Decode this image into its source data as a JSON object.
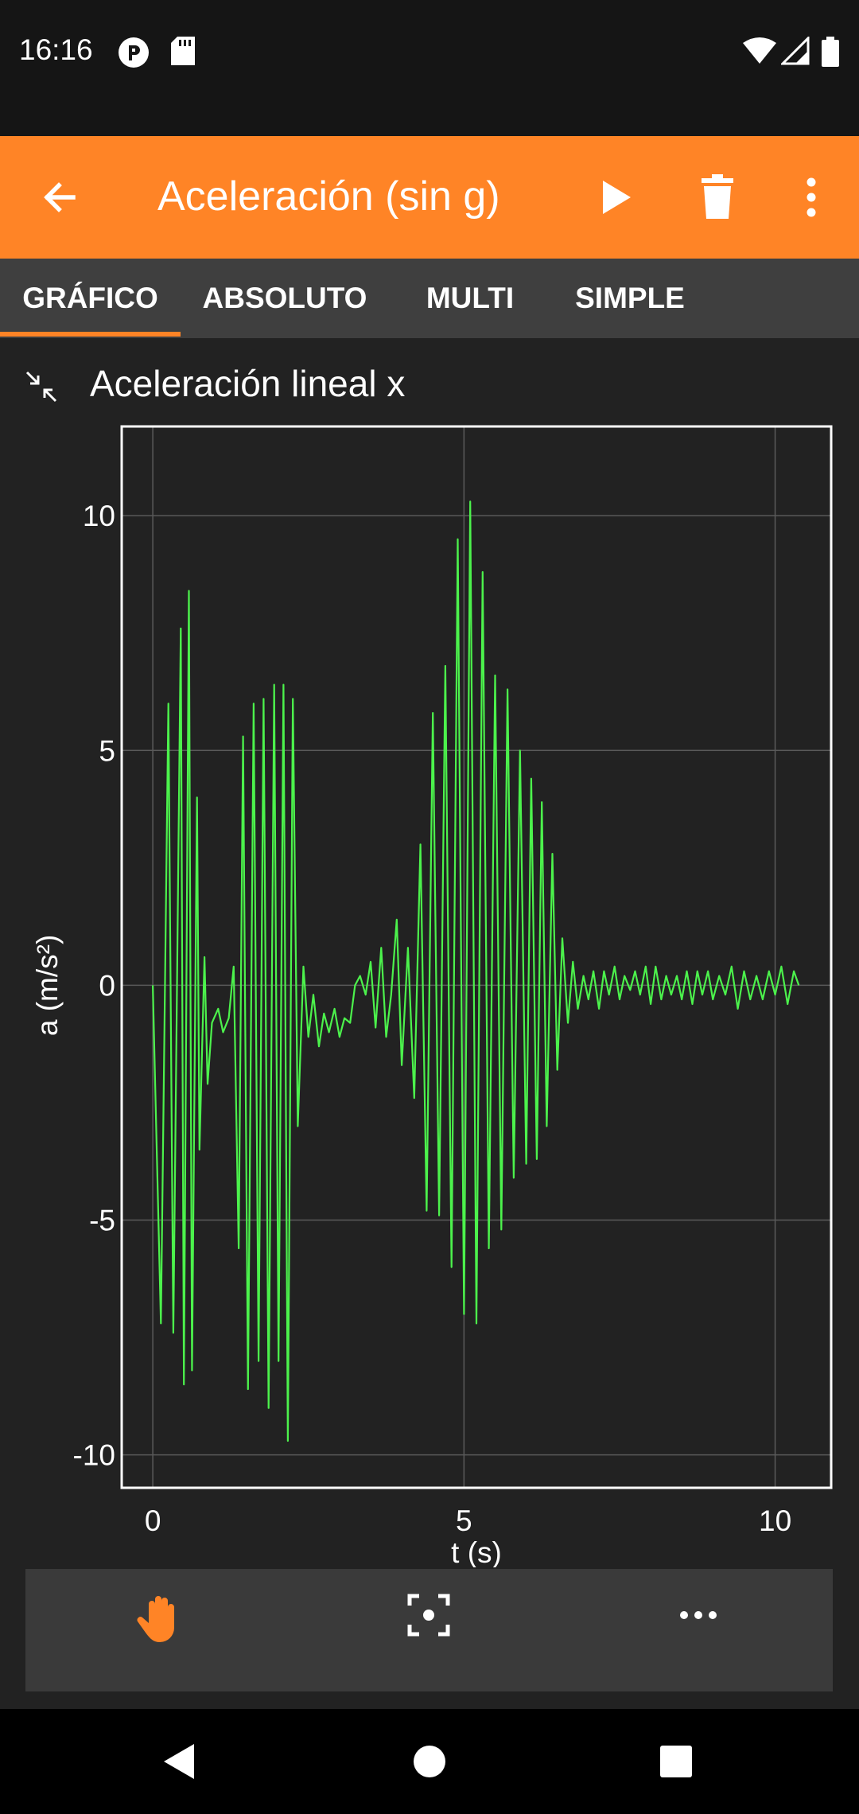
{
  "status_bar": {
    "time": "16:16"
  },
  "app_bar": {
    "title": "Aceleración (sin g)"
  },
  "tabs": [
    {
      "label": "GRÁFICO",
      "selected": true
    },
    {
      "label": "ABSOLUTO",
      "selected": false
    },
    {
      "label": "MULTI",
      "selected": false
    },
    {
      "label": "SIMPLE",
      "selected": false
    }
  ],
  "graph": {
    "title": "Aceleración lineal x"
  },
  "chart_data": {
    "type": "line",
    "xlabel": "t (s)",
    "ylabel": "a (m/s²)",
    "xlim": [
      -0.5,
      10.9
    ],
    "ylim": [
      -10.7,
      11.9
    ],
    "x_ticks": [
      "0",
      "5",
      "10"
    ],
    "y_ticks": [
      "10",
      "5",
      "0",
      "-5",
      "-10"
    ],
    "x_tick_values": [
      0,
      5,
      10
    ],
    "y_tick_values": [
      10,
      5,
      0,
      -5,
      -10
    ],
    "grid": true,
    "line_color": "#4cf24c",
    "series": [
      {
        "x": [
          0.0,
          0.13,
          0.25,
          0.33,
          0.45,
          0.5,
          0.58,
          0.63,
          0.71,
          0.75,
          0.83,
          0.88,
          0.95,
          1.05,
          1.13,
          1.22,
          1.3,
          1.38,
          1.45,
          1.53,
          1.62,
          1.7,
          1.78,
          1.86,
          1.95,
          2.02,
          2.1,
          2.17,
          2.25,
          2.33,
          2.42,
          2.5,
          2.58,
          2.67,
          2.75,
          2.83,
          2.92,
          3.0,
          3.08,
          3.17,
          3.25,
          3.33,
          3.42,
          3.5,
          3.58,
          3.67,
          3.75,
          3.83,
          3.92,
          4.0,
          4.1,
          4.2,
          4.3,
          4.4,
          4.5,
          4.6,
          4.7,
          4.8,
          4.9,
          5.0,
          5.1,
          5.2,
          5.3,
          5.4,
          5.5,
          5.6,
          5.7,
          5.8,
          5.9,
          6.0,
          6.08,
          6.17,
          6.25,
          6.33,
          6.42,
          6.5,
          6.58,
          6.67,
          6.75,
          6.83,
          6.92,
          7.0,
          7.08,
          7.17,
          7.25,
          7.33,
          7.42,
          7.5,
          7.58,
          7.67,
          7.75,
          7.83,
          7.92,
          8.0,
          8.08,
          8.17,
          8.25,
          8.33,
          8.42,
          8.5,
          8.58,
          8.67,
          8.75,
          8.83,
          8.92,
          9.0,
          9.1,
          9.2,
          9.3,
          9.4,
          9.5,
          9.6,
          9.7,
          9.8,
          9.9,
          10.0,
          10.1,
          10.2,
          10.3,
          10.38
        ],
        "y": [
          0,
          -7.2,
          6.0,
          -7.4,
          7.6,
          -8.5,
          8.4,
          -8.2,
          4.0,
          -3.5,
          0.6,
          -2.1,
          -0.8,
          -0.5,
          -1.0,
          -0.7,
          0.4,
          -5.6,
          5.3,
          -8.6,
          6.0,
          -8.0,
          6.1,
          -9.0,
          6.4,
          -8.0,
          6.4,
          -9.7,
          6.1,
          -3.0,
          0.4,
          -1.1,
          -0.2,
          -1.3,
          -0.6,
          -1.0,
          -0.5,
          -1.1,
          -0.7,
          -0.8,
          0.0,
          0.2,
          -0.2,
          0.5,
          -0.9,
          0.8,
          -1.1,
          -0.2,
          1.4,
          -1.7,
          0.8,
          -2.4,
          3.0,
          -4.8,
          5.8,
          -4.9,
          6.8,
          -6.0,
          9.5,
          -7.0,
          10.3,
          -7.2,
          8.8,
          -5.6,
          6.6,
          -5.2,
          6.3,
          -4.1,
          5.0,
          -3.8,
          4.4,
          -3.7,
          3.9,
          -3.0,
          2.8,
          -1.8,
          1.0,
          -0.8,
          0.5,
          -0.5,
          0.2,
          -0.3,
          0.3,
          -0.5,
          0.3,
          -0.2,
          0.4,
          -0.3,
          0.2,
          -0.1,
          0.3,
          -0.2,
          0.4,
          -0.4,
          0.4,
          -0.3,
          0.2,
          -0.2,
          0.2,
          -0.3,
          0.3,
          -0.4,
          0.3,
          -0.2,
          0.3,
          -0.3,
          0.2,
          -0.2,
          0.4,
          -0.5,
          0.3,
          -0.3,
          0.2,
          -0.3,
          0.3,
          -0.2,
          0.4,
          -0.4,
          0.3,
          0.0
        ]
      }
    ]
  }
}
